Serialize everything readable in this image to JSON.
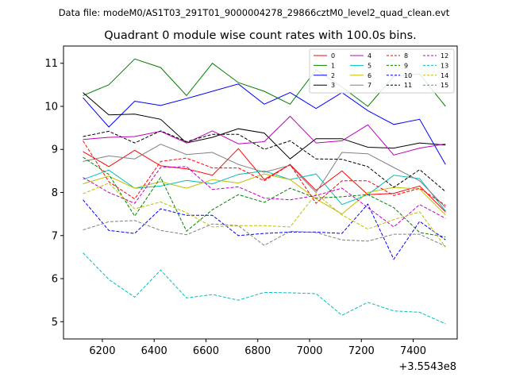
{
  "chart_data": {
    "type": "line",
    "suptitle": "Data file: modeM0/AS1T03_291T01_9000004278_29866cztM0_level2_quad_clean.evt",
    "title": "Quadrant 0 module wise count rates with 100.0s bins.",
    "xlabel": "",
    "ylabel": "",
    "x_offset_label": "+3.5543e8",
    "xlim": [
      6050,
      7570
    ],
    "ylim": [
      4.6,
      11.4
    ],
    "x_ticks": [
      6200,
      6400,
      6600,
      6800,
      7000,
      7200,
      7400
    ],
    "x_tick_labels": [
      "6200",
      "6400",
      "6600",
      "6800",
      "7000",
      "7200",
      "7400"
    ],
    "y_ticks": [
      5,
      6,
      7,
      8,
      9,
      10,
      11
    ],
    "y_tick_labels": [
      "5",
      "6",
      "7",
      "8",
      "9",
      "10",
      "11"
    ],
    "grid": false,
    "legend_position": "top-right",
    "legend_columns": 4,
    "x": [
      6125,
      6225,
      6325,
      6425,
      6525,
      6625,
      6725,
      6825,
      6925,
      7025,
      7125,
      7225,
      7325,
      7425,
      7525
    ],
    "series": [
      {
        "name": "0",
        "color": "#ff0000",
        "dash": "solid",
        "values": [
          8.95,
          8.6,
          8.98,
          8.62,
          8.55,
          8.4,
          9.02,
          8.3,
          8.65,
          8.05,
          8.5,
          7.95,
          7.98,
          8.15,
          7.55
        ]
      },
      {
        "name": "1",
        "color": "#008000",
        "dash": "solid",
        "values": [
          10.25,
          10.5,
          11.1,
          10.9,
          10.25,
          11.0,
          10.55,
          10.35,
          10.05,
          10.85,
          10.45,
          10.0,
          10.7,
          10.75,
          10.0
        ]
      },
      {
        "name": "2",
        "color": "#0000ff",
        "dash": "solid",
        "values": [
          10.2,
          9.52,
          10.12,
          10.02,
          10.18,
          10.35,
          10.52,
          10.05,
          10.32,
          9.95,
          10.32,
          9.9,
          9.58,
          9.7,
          8.65
        ]
      },
      {
        "name": "3",
        "color": "#000000",
        "dash": "solid",
        "values": [
          10.32,
          9.8,
          9.82,
          9.7,
          9.15,
          9.28,
          9.48,
          9.38,
          8.78,
          9.25,
          9.25,
          9.05,
          9.03,
          9.15,
          9.1
        ]
      },
      {
        "name": "4",
        "color": "#c000c0",
        "dash": "solid",
        "values": [
          9.23,
          9.28,
          9.3,
          9.42,
          9.15,
          9.43,
          9.13,
          9.18,
          9.77,
          9.15,
          9.2,
          9.57,
          8.87,
          9.03,
          9.13
        ]
      },
      {
        "name": "5",
        "color": "#00bfbf",
        "dash": "solid",
        "values": [
          8.3,
          8.52,
          8.1,
          8.15,
          8.28,
          8.2,
          8.42,
          8.5,
          8.3,
          8.43,
          7.72,
          7.95,
          8.4,
          8.32,
          7.57
        ]
      },
      {
        "name": "6",
        "color": "#bfbf00",
        "dash": "solid",
        "values": [
          8.2,
          8.38,
          8.1,
          8.25,
          8.1,
          8.3,
          8.22,
          8.43,
          8.3,
          7.85,
          7.5,
          8.0,
          8.12,
          8.08,
          7.48
        ]
      },
      {
        "name": "7",
        "color": "#808080",
        "dash": "solid",
        "values": [
          8.72,
          8.85,
          8.78,
          9.12,
          8.88,
          8.93,
          8.65,
          8.47,
          8.63,
          8.0,
          8.93,
          8.9,
          8.58,
          8.27,
          7.65
        ]
      },
      {
        "name": "8",
        "color": "#ff0000",
        "dash": "dashed",
        "values": [
          9.2,
          8.25,
          7.85,
          8.72,
          8.8,
          8.57,
          8.57,
          8.27,
          8.65,
          7.75,
          8.27,
          8.27,
          7.93,
          8.1,
          7.7
        ]
      },
      {
        "name": "9",
        "color": "#008000",
        "dash": "dashed",
        "values": [
          8.82,
          8.42,
          7.45,
          8.35,
          7.1,
          7.6,
          7.95,
          7.77,
          8.1,
          7.87,
          7.9,
          7.95,
          7.65,
          7.07,
          6.97
        ]
      },
      {
        "name": "10",
        "color": "#0000ff",
        "dash": "dashed",
        "values": [
          7.83,
          7.12,
          7.05,
          7.62,
          7.47,
          7.47,
          7.0,
          7.05,
          7.08,
          7.08,
          7.05,
          7.73,
          6.45,
          7.33,
          6.9
        ]
      },
      {
        "name": "11",
        "color": "#000000",
        "dash": "dashed",
        "values": [
          9.3,
          9.42,
          9.15,
          9.43,
          9.18,
          9.35,
          9.35,
          9.0,
          9.2,
          8.78,
          8.77,
          8.6,
          8.12,
          8.53,
          8.02
        ]
      },
      {
        "name": "12",
        "color": "#c000c0",
        "dash": "dashed",
        "values": [
          8.35,
          8.0,
          7.75,
          8.58,
          8.6,
          8.07,
          8.13,
          7.87,
          7.83,
          7.93,
          8.1,
          7.65,
          7.2,
          7.72,
          7.4
        ]
      },
      {
        "name": "13",
        "color": "#00bfbf",
        "dash": "dashed",
        "values": [
          6.6,
          5.98,
          5.57,
          6.2,
          5.55,
          5.63,
          5.5,
          5.68,
          5.67,
          5.65,
          5.15,
          5.45,
          5.25,
          5.22,
          4.95
        ]
      },
      {
        "name": "14",
        "color": "#bfbf00",
        "dash": "dashed",
        "values": [
          7.97,
          8.22,
          7.62,
          7.78,
          7.53,
          7.2,
          7.23,
          7.23,
          7.2,
          7.97,
          7.48,
          7.15,
          7.37,
          7.55,
          6.73
        ]
      },
      {
        "name": "15",
        "color": "#808080",
        "dash": "dashed",
        "values": [
          7.13,
          7.32,
          7.35,
          7.12,
          7.02,
          7.27,
          7.23,
          6.77,
          7.1,
          7.07,
          6.9,
          6.87,
          7.03,
          7.03,
          6.75
        ]
      }
    ]
  }
}
